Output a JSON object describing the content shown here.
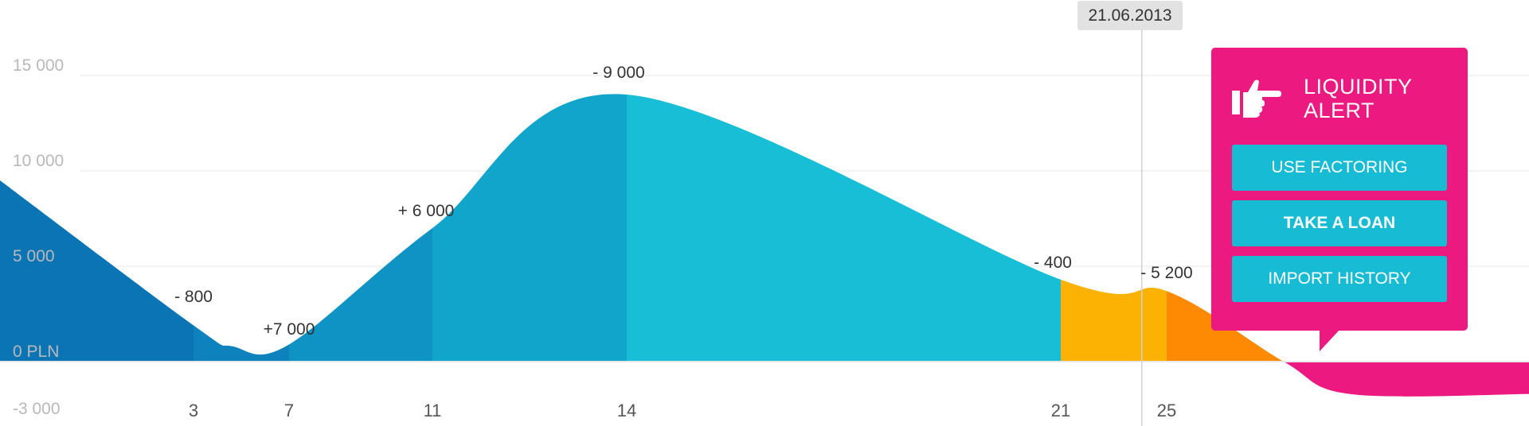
{
  "chart_data": {
    "type": "area",
    "yunit": "PLN",
    "ylim": [
      -3000,
      15000
    ],
    "yticks": [
      {
        "value": 15000,
        "label": "15 000"
      },
      {
        "value": 10000,
        "label": "10 000"
      },
      {
        "value": 5000,
        "label": "5 000"
      },
      {
        "value": 0,
        "label": "0 PLN"
      },
      {
        "value": -3000,
        "label": "-3 000"
      }
    ],
    "x_day_labels": [
      "3",
      "7",
      "11",
      "14",
      "21",
      "25"
    ],
    "balance_points": [
      {
        "day": 0,
        "value": 9500
      },
      {
        "day": 3,
        "value": 1900
      },
      {
        "day": 4,
        "value": 800
      },
      {
        "day": 7,
        "value": 900
      },
      {
        "day": 11,
        "value": 7000
      },
      {
        "day": 14,
        "value": 14000
      },
      {
        "day": 21,
        "value": 4300
      },
      {
        "day": 25,
        "value": 3700
      },
      {
        "day": 29,
        "value": 0
      },
      {
        "day": 31,
        "value": -1700
      },
      {
        "day": 33,
        "value": -1700
      }
    ],
    "segments": [
      {
        "from_day": 0,
        "to_day": 3,
        "color": "#0b74b5"
      },
      {
        "from_day": 3,
        "to_day": 7,
        "color": "#0d82bd"
      },
      {
        "from_day": 7,
        "to_day": 11,
        "color": "#0f93c5"
      },
      {
        "from_day": 11,
        "to_day": 14,
        "color": "#12a5cc"
      },
      {
        "from_day": 14,
        "to_day": 21,
        "color": "#17bed5"
      },
      {
        "from_day": 21,
        "to_day": 25,
        "color": "#fbb203"
      },
      {
        "from_day": 25,
        "to_day": 29,
        "color": "#fd8a02"
      },
      {
        "from_day": 29,
        "to_day": 33,
        "color": "#ec1a80"
      }
    ],
    "annotations": [
      {
        "day": 3,
        "text": "-  800"
      },
      {
        "day": 7,
        "text": "+7 000"
      },
      {
        "day": 11,
        "text": "+ 6 000"
      },
      {
        "day": 14,
        "text": "- 9 000"
      },
      {
        "day": 21,
        "text": "- 400"
      },
      {
        "day": 25,
        "text": "- 5 200"
      }
    ],
    "current_date": {
      "day": 24,
      "label": "21.06.2013"
    },
    "grid": true
  },
  "alert": {
    "title": "LIQUIDITY ALERT",
    "icon": "pointing-hand-icon",
    "color": "#ec1a80",
    "buttons": {
      "factoring": "USE FACTORING",
      "loan": "TAKE A LOAN",
      "history": "IMPORT HISTORY"
    },
    "button_color": "#17bcd4"
  }
}
